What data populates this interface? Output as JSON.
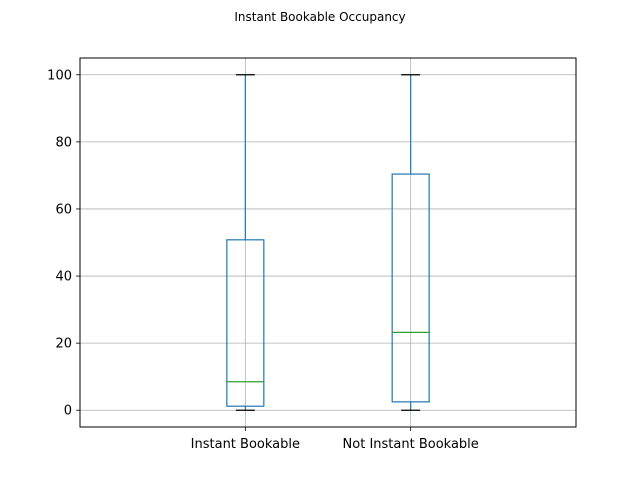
{
  "chart_data": {
    "type": "box",
    "title": "Instant Bookable Occupancy",
    "xlabel": "",
    "ylabel": "",
    "categories": [
      "Instant Bookable",
      "Not Instant Bookable"
    ],
    "boxes": [
      {
        "whisker_low": 0,
        "q1": 1.2,
        "median": 8.5,
        "q3": 50.8,
        "whisker_high": 100
      },
      {
        "whisker_low": 0,
        "q1": 2.5,
        "median": 23.2,
        "q3": 70.4,
        "whisker_high": 100
      }
    ],
    "ylim": [
      -5,
      105
    ],
    "yticks": [
      0,
      20,
      40,
      60,
      80,
      100
    ],
    "grid": true,
    "colors": {
      "box": "#1f77b4",
      "median": "#2ca02c",
      "cap": "#000000",
      "grid": "#b0b0b0"
    }
  }
}
